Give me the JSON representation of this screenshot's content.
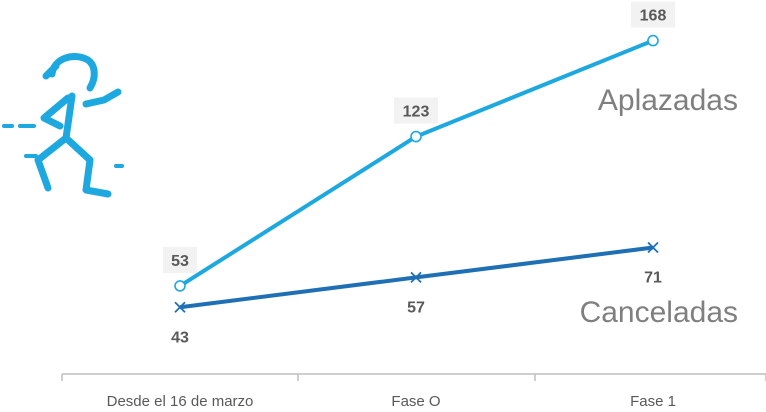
{
  "chart_data": {
    "type": "line",
    "categories": [
      "Desde el 16 de marzo",
      "Fase O",
      "Fase 1"
    ],
    "series": [
      {
        "name": "Aplazadas",
        "values": [
          53,
          123,
          168
        ],
        "color": "#1ea8e0",
        "marker": "circle"
      },
      {
        "name": "Canceladas",
        "values": [
          43,
          57,
          71
        ],
        "color": "#1f6fb5",
        "marker": "x"
      }
    ],
    "title": "",
    "xlabel": "",
    "ylabel": "",
    "ylim": [
      0,
      180
    ],
    "grid": false,
    "legend": "inline series names at right"
  },
  "icon": {
    "name": "running-person-icon",
    "color": "#1ea8e0"
  },
  "axis_color": "#bfbfbf",
  "label_color": "#595959"
}
